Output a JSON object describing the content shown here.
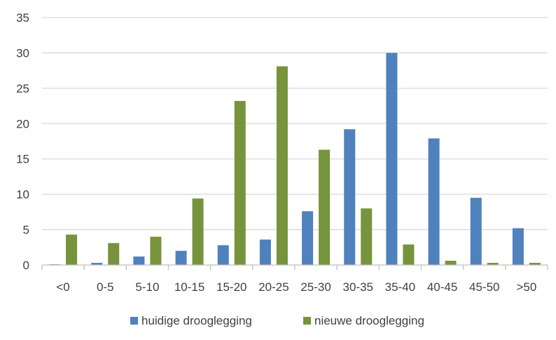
{
  "chart_data": {
    "type": "bar",
    "title": "",
    "xlabel": "",
    "ylabel": "",
    "categories": [
      "<0",
      "0-5",
      "5-10",
      "10-15",
      "15-20",
      "20-25",
      "25-30",
      "30-35",
      "35-40",
      "40-45",
      "45-50",
      ">50"
    ],
    "series": [
      {
        "name": "huidige drooglegging",
        "color": "#4f81bd",
        "values": [
          0.1,
          0.3,
          1.2,
          2.0,
          2.8,
          3.6,
          7.6,
          19.2,
          30.0,
          17.9,
          9.5,
          5.2
        ]
      },
      {
        "name": "nieuwe drooglegging",
        "color": "#77933c",
        "values": [
          4.3,
          3.1,
          4.0,
          9.4,
          23.2,
          28.1,
          16.3,
          8.0,
          2.9,
          0.6,
          0.3,
          0.3
        ]
      }
    ],
    "ylim": [
      0,
      35
    ],
    "yticks": [
      0,
      5,
      10,
      15,
      20,
      25,
      30,
      35
    ],
    "grid": true,
    "legend_position": "bottom",
    "gridline_color": "#d9d9d9",
    "axis_line_color": "#bfbfbf"
  }
}
